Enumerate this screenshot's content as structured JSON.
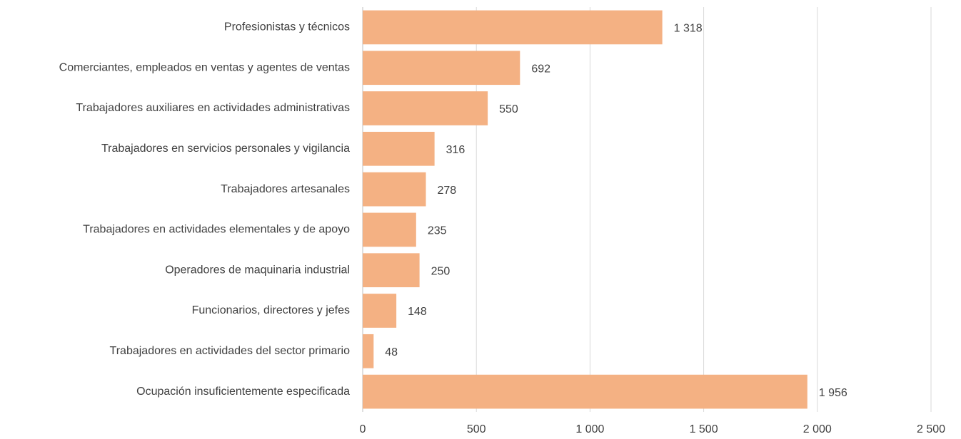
{
  "chart_data": {
    "type": "bar",
    "orientation": "horizontal",
    "categories": [
      "Profesionistas y técnicos",
      "Comerciantes, empleados en ventas y agentes de ventas",
      "Trabajadores auxiliares en actividades administrativas",
      "Trabajadores en servicios personales y vigilancia",
      "Trabajadores artesanales",
      "Trabajadores en actividades elementales y de apoyo",
      "Operadores de maquinaria industrial",
      "Funcionarios, directores y jefes",
      "Trabajadores en actividades del sector primario",
      "Ocupación insuficientemente especificada"
    ],
    "values": [
      1318,
      692,
      550,
      316,
      278,
      235,
      250,
      148,
      48,
      1956
    ],
    "value_labels": [
      "1 318",
      "692",
      "550",
      "316",
      "278",
      "235",
      "250",
      "148",
      "48",
      "1 956"
    ],
    "color": "#f4b183",
    "xlim": [
      0,
      2500
    ],
    "xticks": [
      0,
      500,
      {
        "value": 1000,
        "label": "1 000"
      },
      {
        "value": 1500,
        "label": "1 500"
      },
      {
        "value": 2000,
        "label": "2 000"
      },
      {
        "value": 2500,
        "label": "2 500"
      }
    ],
    "grid": true
  }
}
